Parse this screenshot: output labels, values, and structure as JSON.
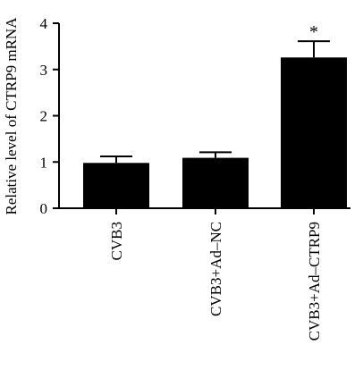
{
  "chart_data": {
    "type": "bar",
    "categories": [
      "CVB3",
      "CVB3+Ad-NC",
      "CVB3+Ad-CTRP9"
    ],
    "values": [
      0.98,
      1.09,
      3.26
    ],
    "error": [
      0.14,
      0.12,
      0.35
    ],
    "annotations": [
      "",
      "",
      "*"
    ],
    "title": "",
    "xlabel": "",
    "ylabel": "Relative level of CTRP9 mRNA",
    "ylim": [
      0,
      4
    ],
    "yticks": [
      0,
      1,
      2,
      3,
      4
    ],
    "grid": false,
    "legend": "none",
    "colors": {
      "bar": "#000000",
      "axis": "#000000",
      "background": "#ffffff"
    }
  }
}
